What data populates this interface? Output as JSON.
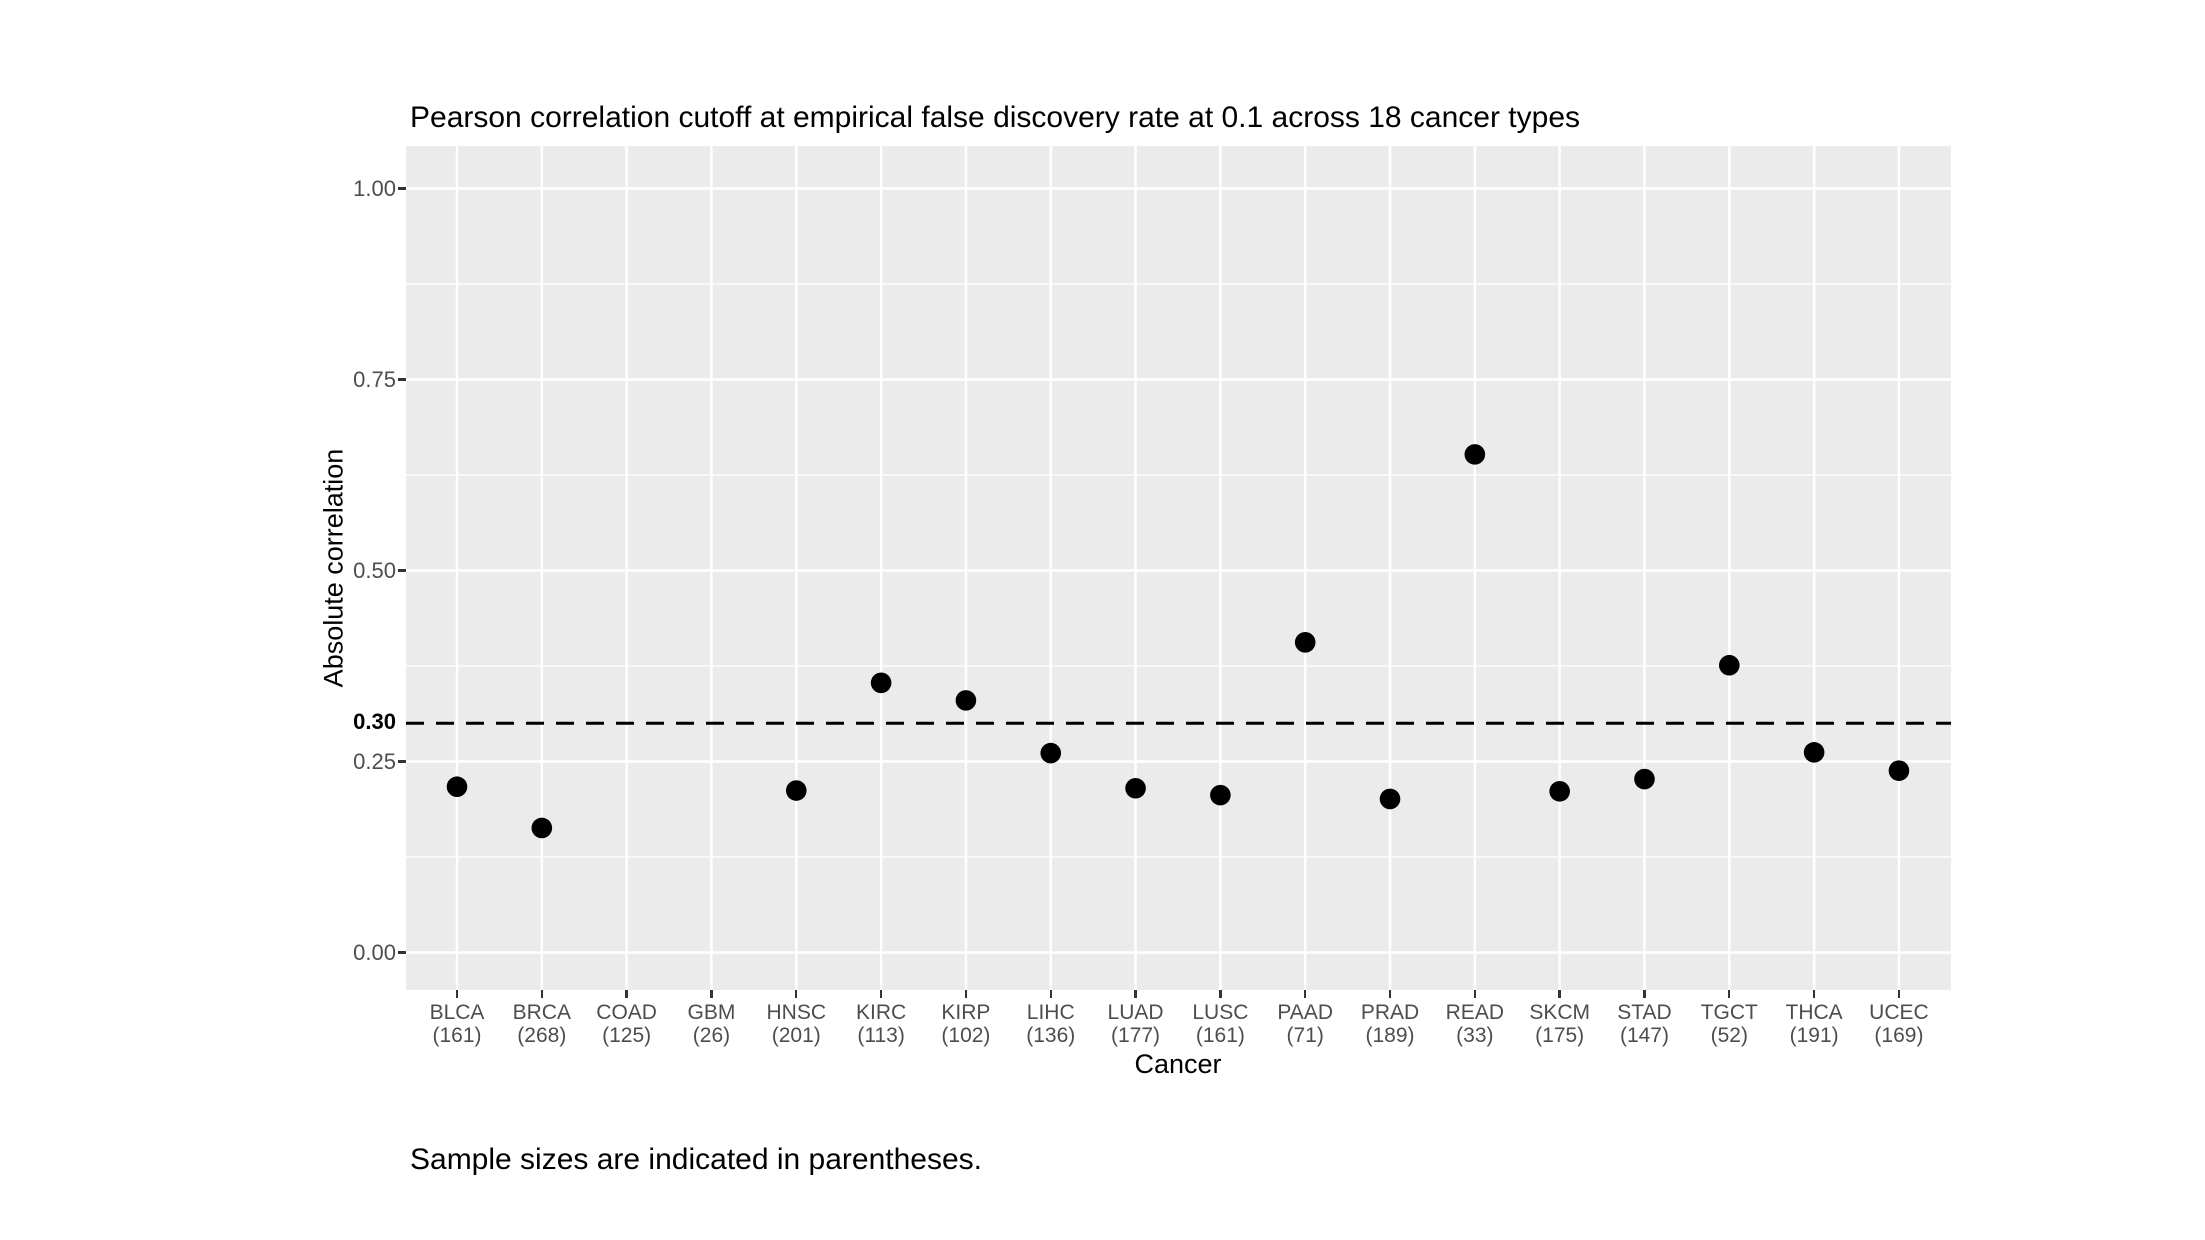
{
  "chart_data": {
    "type": "scatter",
    "title": "Pearson correlation cutoff at empirical false discovery rate at 0.1 across 18 cancer types",
    "xlabel": "Cancer",
    "ylabel": "Absolute correlation",
    "footer": "Sample sizes are indicated in parentheses.",
    "categories": [
      "BLCA",
      "BRCA",
      "COAD",
      "GBM",
      "HNSC",
      "KIRC",
      "KIRP",
      "LIHC",
      "LUAD",
      "LUSC",
      "PAAD",
      "PRAD",
      "READ",
      "SKCM",
      "STAD",
      "TGCT",
      "THCA",
      "UCEC"
    ],
    "sample_sizes": [
      161,
      268,
      125,
      26,
      201,
      113,
      102,
      136,
      177,
      161,
      71,
      189,
      33,
      175,
      147,
      52,
      191,
      169
    ],
    "values": [
      0.217,
      0.163,
      null,
      null,
      0.212,
      0.353,
      0.33,
      0.261,
      0.215,
      0.206,
      0.406,
      0.201,
      0.652,
      0.211,
      0.227,
      0.376,
      0.262,
      0.238
    ],
    "cutoff": {
      "value": 0.3,
      "label": "0.30"
    },
    "y_ticks": [
      {
        "value": 0.0,
        "label": "0.00"
      },
      {
        "value": 0.25,
        "label": "0.25"
      },
      {
        "value": 0.5,
        "label": "0.50"
      },
      {
        "value": 0.75,
        "label": "0.75"
      },
      {
        "value": 1.0,
        "label": "1.00"
      }
    ],
    "ylim": [
      -0.05,
      1.06
    ],
    "grid": true,
    "legend_position": "none",
    "style": {
      "panel_background": "#ebebeb",
      "grid_color": "#ffffff",
      "point_color": "#000000",
      "cutoff_line_color": "#000000",
      "tick_label_color": "#4d4d4d",
      "title_color": "#000000"
    }
  }
}
